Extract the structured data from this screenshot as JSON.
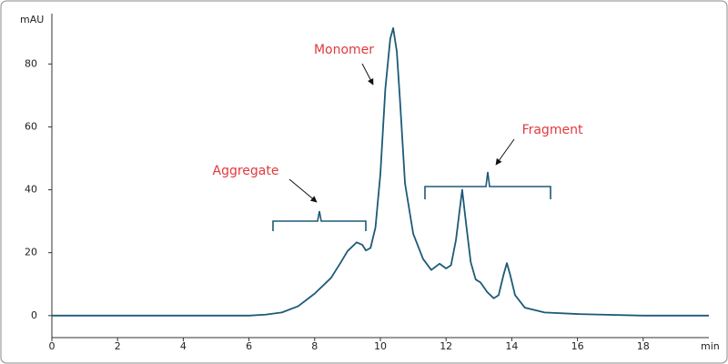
{
  "chart_data": {
    "type": "line",
    "x_label": "min",
    "y_label": "mAU",
    "annotations": [
      "Monomer",
      "Aggregate",
      "Fragment"
    ],
    "color": "#1d5a78",
    "x": [
      0,
      2,
      4,
      6,
      6.5,
      7,
      7.5,
      8,
      8.5,
      8.8,
      9,
      9.28,
      9.45,
      9.56,
      9.7,
      9.85,
      10,
      10.15,
      10.3,
      10.39,
      10.5,
      10.6,
      10.75,
      11,
      11.3,
      11.55,
      11.8,
      12,
      12.15,
      12.3,
      12.49,
      12.6,
      12.75,
      12.9,
      13.05,
      13.25,
      13.45,
      13.6,
      13.75,
      13.85,
      13.95,
      14.1,
      14.4,
      15,
      16,
      18,
      20
    ],
    "values": [
      0,
      0,
      0,
      0,
      0.3,
      1,
      3,
      7,
      12,
      17,
      20.5,
      23.3,
      22.5,
      20.7,
      21.5,
      28,
      45,
      72,
      88,
      91.4,
      84,
      68,
      42,
      26,
      18,
      14.5,
      16.5,
      15,
      16,
      24,
      40,
      30,
      17,
      11.5,
      10.5,
      7.5,
      5.5,
      6.5,
      13,
      16.7,
      13,
      6.5,
      2.5,
      1,
      0.5,
      0,
      0
    ],
    "xlim": [
      0,
      20
    ],
    "ylim": [
      -7,
      96
    ],
    "xticks": [
      0,
      2,
      4,
      6,
      8,
      10,
      12,
      14,
      16,
      18
    ],
    "yticks": [
      0,
      20,
      40,
      60,
      80
    ]
  }
}
